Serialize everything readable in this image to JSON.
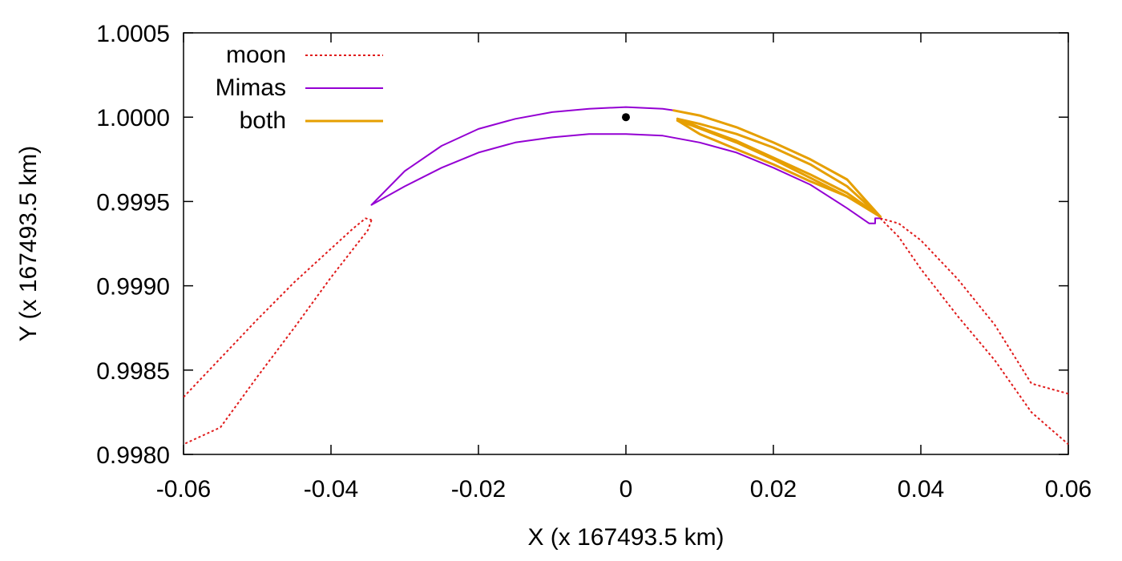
{
  "chart_data": {
    "type": "line",
    "title": "",
    "xlabel": "X (x 167493.5 km)",
    "ylabel": "Y (x 167493.5 km)",
    "xlim": [
      -0.06,
      0.06
    ],
    "ylim": [
      0.998,
      1.0005
    ],
    "x_ticks": [
      -0.06,
      -0.04,
      -0.02,
      0,
      0.02,
      0.04,
      0.06
    ],
    "x_tick_labels": [
      "-0.06",
      "-0.04",
      "-0.02",
      "0",
      "0.02",
      "0.04",
      "0.06"
    ],
    "y_ticks": [
      0.998,
      0.9985,
      0.999,
      0.9995,
      1.0,
      1.0005
    ],
    "y_tick_labels": [
      "0.9980",
      "0.9985",
      "0.9990",
      "0.9995",
      "1.0000",
      "1.0005"
    ],
    "grid": false,
    "legend_position": "top-left",
    "colors": {
      "moon": "#e01b1b",
      "Mimas": "#9400d3",
      "both": "#e69f00",
      "point": "#000000"
    },
    "series": [
      {
        "name": "moon",
        "style": "dotted",
        "paths": [
          [
            [
              -0.06,
              0.99834
            ],
            [
              -0.055,
              0.99857
            ],
            [
              -0.05,
              0.9988
            ],
            [
              -0.045,
              0.99902
            ],
            [
              -0.04,
              0.99922
            ],
            [
              -0.037,
              0.99934
            ],
            [
              -0.0353,
              0.9994
            ],
            [
              -0.0345,
              0.99939
            ]
          ],
          [
            [
              -0.0345,
              0.99939
            ],
            [
              -0.035,
              0.99933
            ],
            [
              -0.04,
              0.99905
            ],
            [
              -0.045,
              0.99875
            ],
            [
              -0.05,
              0.99846
            ],
            [
              -0.055,
              0.99816
            ],
            [
              -0.06,
              0.99806
            ]
          ],
          [
            [
              0.0345,
              0.9994
            ],
            [
              0.037,
              0.99937
            ],
            [
              0.04,
              0.99927
            ],
            [
              0.045,
              0.99904
            ],
            [
              0.05,
              0.99877
            ],
            [
              0.055,
              0.99842
            ],
            [
              0.06,
              0.99836
            ]
          ],
          [
            [
              0.0345,
              0.9994
            ],
            [
              0.037,
              0.99929
            ],
            [
              0.04,
              0.9991
            ],
            [
              0.045,
              0.99882
            ],
            [
              0.05,
              0.99856
            ],
            [
              0.055,
              0.99825
            ],
            [
              0.06,
              0.99806
            ]
          ]
        ]
      },
      {
        "name": "Mimas",
        "style": "solid",
        "paths": [
          [
            [
              -0.0345,
              0.99948
            ],
            [
              -0.03,
              0.99968
            ],
            [
              -0.025,
              0.99983
            ],
            [
              -0.02,
              0.99993
            ],
            [
              -0.015,
              0.99999
            ],
            [
              -0.01,
              1.00003
            ],
            [
              -0.005,
              1.00005
            ],
            [
              0,
              1.00006
            ],
            [
              0.005,
              1.00005
            ],
            [
              0.0065,
              1.00004
            ]
          ],
          [
            [
              -0.0345,
              0.99948
            ],
            [
              -0.03,
              0.99959
            ],
            [
              -0.025,
              0.9997
            ],
            [
              -0.02,
              0.99979
            ],
            [
              -0.015,
              0.99985
            ],
            [
              -0.01,
              0.99988
            ],
            [
              -0.005,
              0.9999
            ],
            [
              0,
              0.9999
            ],
            [
              0.005,
              0.99989
            ],
            [
              0.01,
              0.99985
            ],
            [
              0.015,
              0.99979
            ],
            [
              0.02,
              0.9997
            ],
            [
              0.025,
              0.9996
            ],
            [
              0.03,
              0.99946
            ],
            [
              0.033,
              0.99937
            ],
            [
              0.0338,
              0.99937
            ],
            [
              0.0338,
              0.9994
            ],
            [
              0.0345,
              0.9994
            ]
          ]
        ]
      },
      {
        "name": "both",
        "style": "solid",
        "paths": [
          [
            [
              0.0065,
              1.00004
            ],
            [
              0.01,
              1.00001
            ],
            [
              0.015,
              0.99994
            ],
            [
              0.02,
              0.99985
            ],
            [
              0.025,
              0.99975
            ],
            [
              0.03,
              0.99963
            ],
            [
              0.0345,
              0.99941
            ]
          ],
          [
            [
              0.0345,
              0.99941
            ],
            [
              0.03,
              0.99959
            ],
            [
              0.025,
              0.99972
            ],
            [
              0.02,
              0.99982
            ],
            [
              0.015,
              0.9999
            ],
            [
              0.01,
              0.99996
            ],
            [
              0.007,
              0.99999
            ]
          ],
          [
            [
              0.007,
              0.99999
            ],
            [
              0.01,
              0.99994
            ],
            [
              0.015,
              0.99986
            ],
            [
              0.02,
              0.99976
            ],
            [
              0.025,
              0.99966
            ],
            [
              0.03,
              0.99955
            ],
            [
              0.0345,
              0.99941
            ]
          ],
          [
            [
              0.0345,
              0.99941
            ],
            [
              0.03,
              0.99953
            ],
            [
              0.025,
              0.99962
            ],
            [
              0.02,
              0.99972
            ],
            [
              0.015,
              0.99981
            ],
            [
              0.01,
              0.9999
            ],
            [
              0.007,
              0.99998
            ]
          ],
          [
            [
              0.007,
              0.99998
            ],
            [
              0.009,
              0.99995
            ],
            [
              0.015,
              0.99985
            ],
            [
              0.02,
              0.99975
            ],
            [
              0.025,
              0.99964
            ],
            [
              0.03,
              0.99953
            ],
            [
              0.0345,
              0.99941
            ]
          ]
        ]
      }
    ],
    "points": [
      {
        "x": 0,
        "y": 1.0
      }
    ]
  }
}
